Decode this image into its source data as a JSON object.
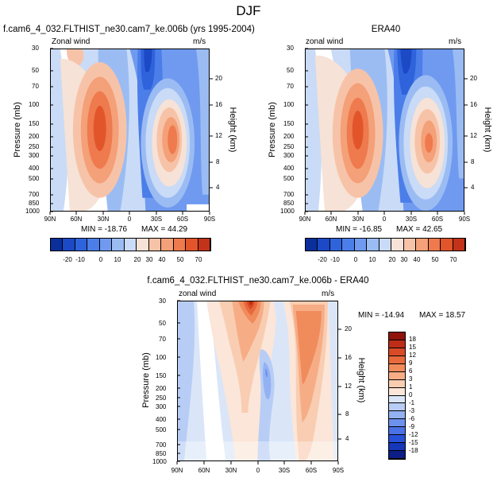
{
  "figure": {
    "title": "DJF"
  },
  "colors": {
    "diverging_13": [
      "#0a2f9a",
      "#1c49c6",
      "#2f63dc",
      "#4c7ee9",
      "#6f9af0",
      "#9bbcf3",
      "#c9dbf6",
      "#f6e2d6",
      "#f7c3a8",
      "#f4a078",
      "#ee7a4d",
      "#e2552a",
      "#c2331a"
    ],
    "diff_16": [
      "#0d1e86",
      "#1537b8",
      "#2951d8",
      "#4a72e6",
      "#6d92ee",
      "#93b2f3",
      "#b8cdf5",
      "#dae6f8",
      "#fbe6d9",
      "#f9cdb2",
      "#f6ad86",
      "#f08b5c",
      "#e8693c",
      "#d94a26",
      "#bd2d17",
      "#8f130b"
    ]
  },
  "chart_data": [
    {
      "type": "contour",
      "title_left": "f.cam6_4_032.FLTHIST_ne30.cam7_ke.006b (yrs 1995-2004)",
      "subtitle_left": "Zonal wind",
      "subtitle_right": "m/s",
      "xlabel": "",
      "ylabel": "Pressure (mb)",
      "ylabel_right": "Height (km)",
      "x_ticks": [
        "90N",
        "60N",
        "30N",
        "0",
        "30S",
        "60S",
        "90S"
      ],
      "y_ticks": [
        30,
        50,
        70,
        100,
        150,
        200,
        250,
        300,
        400,
        500,
        700,
        850,
        1000
      ],
      "y_right_ticks": [
        20,
        16,
        12,
        8,
        4
      ],
      "ylim": [
        1000,
        30
      ],
      "y_scale": "log",
      "min_label": "MIN = -18.76",
      "max_label": "MAX =  44.29",
      "colorbar_levels": [
        "-20",
        "-10",
        "0",
        "10",
        "20",
        "30",
        "40",
        "50",
        "70"
      ],
      "jets": [
        {
          "name": "northern jet",
          "lat": 30,
          "pressure": 200,
          "max": 44.29
        },
        {
          "name": "southern jet",
          "lat": -45,
          "pressure": 250,
          "max": 35
        },
        {
          "name": "easterly core",
          "lat": 10,
          "pressure": 30,
          "min": -18.76
        }
      ]
    },
    {
      "type": "contour",
      "title_center": "ERA40",
      "subtitle_left": "zonal wind",
      "subtitle_right": "m/s",
      "xlabel": "",
      "ylabel": "Pressure (mb)",
      "ylabel_right": "Height (km)",
      "x_ticks": [
        "90N",
        "60N",
        "30N",
        "0",
        "30S",
        "60S",
        "90S"
      ],
      "y_ticks": [
        30,
        50,
        70,
        100,
        150,
        200,
        250,
        300,
        400,
        500,
        700,
        850,
        1000
      ],
      "y_right_ticks": [
        20,
        16,
        12,
        8,
        4
      ],
      "ylim": [
        1000,
        30
      ],
      "y_scale": "log",
      "min_label": "MIN = -16.85",
      "max_label": "MAX =  42.65",
      "colorbar_levels": [
        "-20",
        "-10",
        "0",
        "10",
        "20",
        "30",
        "40",
        "50",
        "70"
      ],
      "jets": [
        {
          "name": "northern jet",
          "lat": 30,
          "pressure": 200,
          "max": 42.65
        },
        {
          "name": "southern jet",
          "lat": -45,
          "pressure": 200,
          "max": 32
        },
        {
          "name": "easterly core",
          "lat": 10,
          "pressure": 30,
          "min": -16.85
        }
      ]
    },
    {
      "type": "contour",
      "title_center": "f.cam6_4_032.FLTHIST_ne30.cam7_ke.006b - ERA40",
      "subtitle_left": "zonal wind",
      "subtitle_right": "m/s",
      "xlabel": "",
      "ylabel": "Pressure (mb)",
      "ylabel_right": "Height (km)",
      "x_ticks": [
        "90N",
        "60N",
        "30N",
        "0",
        "30S",
        "60S",
        "90S"
      ],
      "y_ticks": [
        30,
        50,
        70,
        100,
        150,
        200,
        250,
        300,
        400,
        500,
        700,
        850,
        1000
      ],
      "y_right_ticks": [
        20,
        16,
        12,
        8,
        4
      ],
      "ylim": [
        1000,
        30
      ],
      "y_scale": "log",
      "min_label": "MIN = -14.94",
      "max_label": "MAX =  18.57",
      "colorbar_levels": [
        "18",
        "15",
        "12",
        "9",
        "6",
        "3",
        "1",
        "0",
        "-1",
        "-3",
        "-6",
        "-9",
        "-12",
        "-15",
        "-18"
      ],
      "features": [
        {
          "name": "positive maximum",
          "lat": 5,
          "pressure": 30,
          "value": 18.57
        },
        {
          "name": "positive band",
          "lat": -55,
          "pressure": 100,
          "value": 9
        },
        {
          "name": "negative region",
          "lat": -20,
          "pressure": 100,
          "value": -6
        }
      ]
    }
  ]
}
